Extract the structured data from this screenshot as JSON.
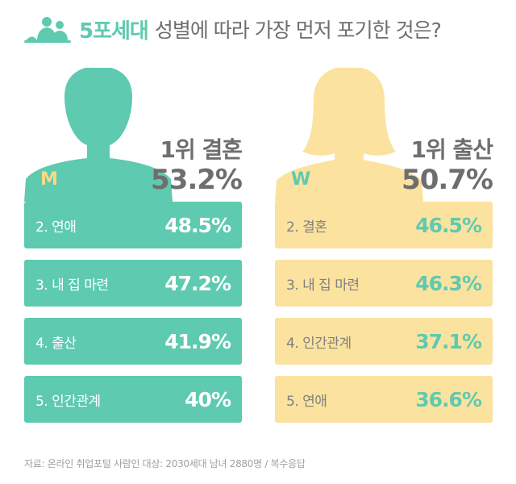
{
  "header": {
    "highlight": "5포세대",
    "title": "성별에 따라 가장 먼저 포기한 것은?",
    "logo_icon": "people-logo-icon"
  },
  "colors": {
    "mint": "#5ecab0",
    "yellow": "#fbe29f",
    "gray": "#6e6e6e"
  },
  "chart_data": {
    "type": "table",
    "unit": "%",
    "groups": [
      {
        "letter": "M",
        "icon": "male-silhouette-icon",
        "top": {
          "rank_label": "1위 결혼",
          "category": "결혼",
          "value": 53.2,
          "value_text": "53.2%"
        },
        "items": [
          {
            "label": "2. 연애",
            "category": "연애",
            "value": 48.5,
            "value_text": "48.5%"
          },
          {
            "label": "3. 내 집 마련",
            "category": "내 집 마련",
            "value": 47.2,
            "value_text": "47.2%"
          },
          {
            "label": "4. 출산",
            "category": "출산",
            "value": 41.9,
            "value_text": "41.9%"
          },
          {
            "label": "5. 인간관계",
            "category": "인간관계",
            "value": 40,
            "value_text": "40%"
          }
        ]
      },
      {
        "letter": "W",
        "icon": "female-silhouette-icon",
        "top": {
          "rank_label": "1위 출산",
          "category": "출산",
          "value": 50.7,
          "value_text": "50.7%"
        },
        "items": [
          {
            "label": "2. 결혼",
            "category": "결혼",
            "value": 46.5,
            "value_text": "46.5%"
          },
          {
            "label": "3. 내 집 마련",
            "category": "내 집 마련",
            "value": 46.3,
            "value_text": "46.3%"
          },
          {
            "label": "4. 인간관계",
            "category": "인간관계",
            "value": 37.1,
            "value_text": "37.1%"
          },
          {
            "label": "5. 연애",
            "category": "연애",
            "value": 36.6,
            "value_text": "36.6%"
          }
        ]
      }
    ]
  },
  "footer": {
    "source": "자료: 온라인 취업포털 사람인  대상: 2030세대 남녀 2880명 / 복수응답"
  }
}
